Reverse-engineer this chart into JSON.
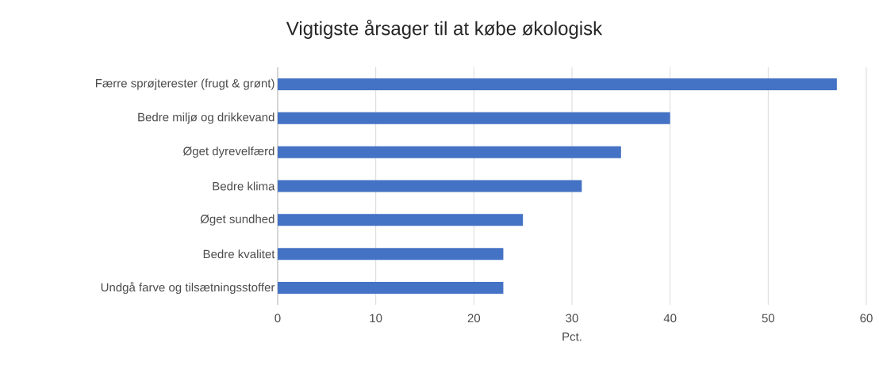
{
  "chart_data": {
    "type": "bar",
    "orientation": "horizontal",
    "title": "Vigtigste årsager til at købe økologisk",
    "xlabel": "Pct.",
    "categories": [
      "Færre sprøjterester (frugt & grønt)",
      "Bedre miljø og drikkevand",
      "Øget dyrevelfærd",
      "Bedre klima",
      "Øget sundhed",
      "Bedre kvalitet",
      "Undgå farve og tilsætningsstoffer"
    ],
    "values": [
      57,
      40,
      35,
      31,
      25,
      23,
      23
    ],
    "color": "#4472c4",
    "xlim": [
      0,
      60
    ],
    "xticks": [
      0,
      10,
      20,
      30,
      40,
      50,
      60
    ],
    "grid": "x"
  }
}
